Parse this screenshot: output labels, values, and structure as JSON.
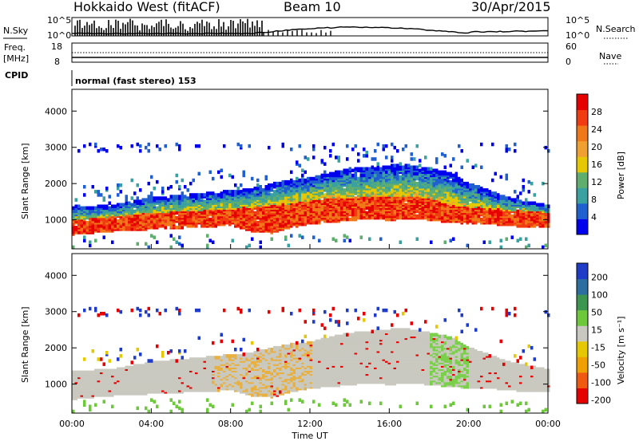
{
  "header": {
    "station": "Hokkaido West (fitACF)",
    "beam": "Beam 10",
    "date": "30/Apr/2015"
  },
  "nsky_panel": {
    "left_label": "N.Sky",
    "right_label": "N.Search",
    "left_ticks": [
      "10^5",
      "10^0"
    ],
    "right_ticks": [
      "10^5",
      "10^0"
    ]
  },
  "freq_panel": {
    "left_label_line1": "Freq.",
    "left_label_line2": "[MHz]",
    "right_label": "Nave",
    "left_ticks": [
      "18",
      "8"
    ],
    "right_ticks": [
      "60",
      "0"
    ]
  },
  "cpid_panel": {
    "label": "CPID",
    "text": "normal (fast stereo) 153"
  },
  "chart_data": [
    {
      "type": "heatmap",
      "name": "power",
      "x": [
        0,
        24
      ],
      "ylim": [
        200,
        4600
      ],
      "yticks": [
        1000,
        2000,
        3000,
        4000
      ],
      "ylabel": "Slant Range [km]",
      "colorbar": {
        "label": "Power [dB]",
        "range": [
          0,
          30
        ],
        "ticks": [
          "4",
          "8",
          "12",
          "16",
          "20",
          "24",
          "28"
        ],
        "colors": [
          "#0000ee",
          "#1f5fd0",
          "#3aa0a0",
          "#5fae6e",
          "#e6c800",
          "#f0a030",
          "#f07818",
          "#f03c10",
          "#e60000"
        ]
      },
      "echo_band": {
        "hours": [
          0,
          2,
          4,
          6,
          8,
          9,
          10,
          11,
          12,
          13,
          14,
          15,
          16,
          17,
          18,
          19,
          20,
          21,
          22,
          23,
          24
        ],
        "lower_km": [
          600,
          700,
          750,
          800,
          850,
          700,
          650,
          800,
          900,
          950,
          1000,
          1050,
          1000,
          1050,
          1000,
          950,
          900,
          900,
          850,
          800,
          800
        ],
        "strong_km": [
          900,
          1000,
          1100,
          1150,
          1200,
          1250,
          1300,
          1350,
          1450,
          1500,
          1500,
          1550,
          1550,
          1550,
          1500,
          1300,
          1250,
          1200,
          1150,
          1150,
          1100
        ],
        "upper_km": [
          1350,
          1400,
          1600,
          1700,
          1800,
          1850,
          2000,
          2100,
          2150,
          2300,
          2400,
          2450,
          2500,
          2500,
          2400,
          2300,
          2000,
          1800,
          1600,
          1500,
          1400
        ]
      }
    },
    {
      "type": "heatmap",
      "name": "velocity",
      "x": [
        0,
        24
      ],
      "ylim": [
        200,
        4600
      ],
      "yticks": [
        1000,
        2000,
        3000,
        4000
      ],
      "ylabel": "Slant Range [km]",
      "xlabel": "Time UT",
      "xticks": [
        "00:00",
        "04:00",
        "08:00",
        "12:00",
        "16:00",
        "20:00",
        "00:00"
      ],
      "colorbar": {
        "label": "Velocity [m s⁻¹]",
        "range": [
          -250,
          250
        ],
        "ticks": [
          "200",
          "100",
          "50",
          "15",
          "-15",
          "-50",
          "-100",
          "-200"
        ],
        "colors": [
          "#e60000",
          "#f05a10",
          "#f0a000",
          "#e6c800",
          "#c8c8c0",
          "#6ec83c",
          "#3c9650",
          "#2d6ea0",
          "#1e3cc8"
        ]
      },
      "dominant": "#c9c9c0"
    }
  ]
}
